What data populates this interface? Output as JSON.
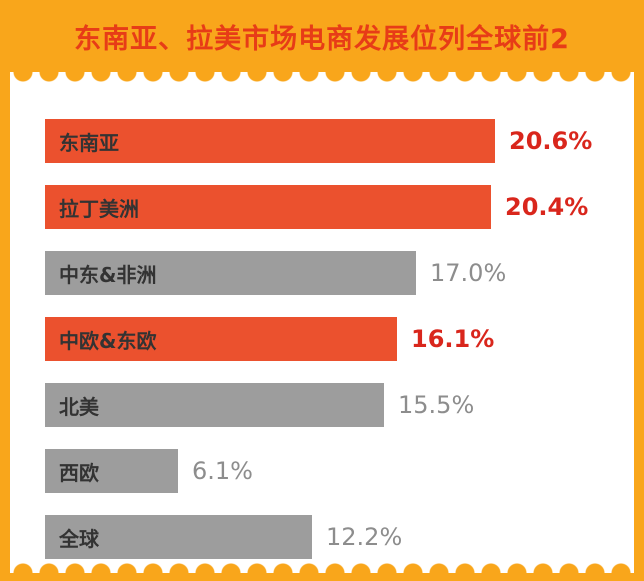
{
  "header": {
    "title": "东南亚、拉美市场电商发展位列全球前2"
  },
  "chart_data": {
    "type": "bar",
    "orientation": "horizontal",
    "title": "东南亚、拉美市场电商发展位列全球前2",
    "categories": [
      "东南亚",
      "拉丁美洲",
      "中东&非洲",
      "中欧&东欧",
      "北美",
      "西欧",
      "全球"
    ],
    "values": [
      20.6,
      20.4,
      17.0,
      16.1,
      15.5,
      6.1,
      12.2
    ],
    "value_labels": [
      "20.6%",
      "20.4%",
      "17.0%",
      "16.1%",
      "15.5%",
      "6.1%",
      "12.2%"
    ],
    "highlight": [
      true,
      true,
      false,
      true,
      false,
      false,
      false
    ],
    "xlim": [
      0,
      22
    ],
    "grid": false,
    "legend": "none",
    "colors": {
      "background": "#F9A61B",
      "panel": "#FFFFFF",
      "highlight_bar": "#EB512E",
      "normal_bar": "#9D9D9D",
      "highlight_value_text": "#D9261C",
      "normal_value_text": "#8D8D8D",
      "bar_label_text": "#333333",
      "title_text": "#E73C17"
    }
  }
}
